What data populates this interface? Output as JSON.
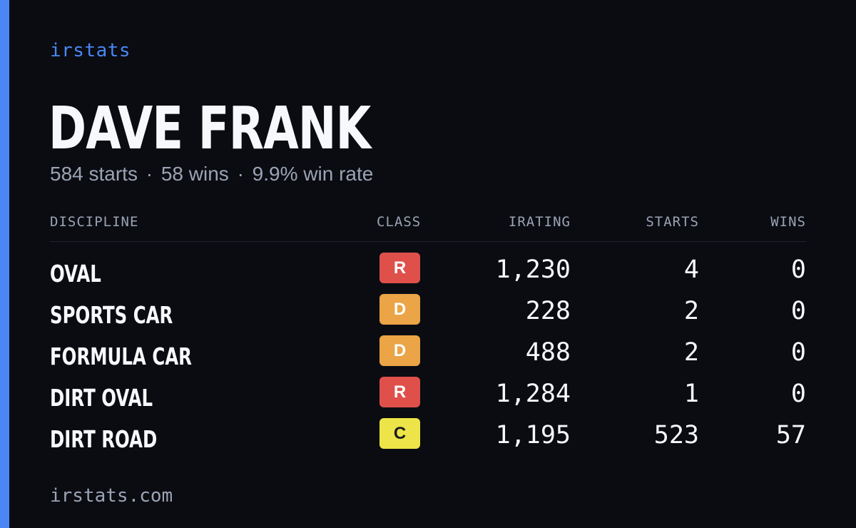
{
  "brand": "irstats",
  "player": {
    "name": "DAVE FRANK",
    "starts": "584 starts",
    "wins": "58 wins",
    "win_rate": "9.9% win rate",
    "separator": "·"
  },
  "table": {
    "headers": {
      "discipline": "DISCIPLINE",
      "class": "CLASS",
      "irating": "IRATING",
      "starts": "STARTS",
      "wins": "WINS"
    },
    "rows": [
      {
        "discipline": "OVAL",
        "class": "R",
        "class_color": "#e0504a",
        "class_text_color": "#ffffff",
        "irating": "1,230",
        "starts": "4",
        "wins": "0"
      },
      {
        "discipline": "SPORTS CAR",
        "class": "D",
        "class_color": "#eba446",
        "class_text_color": "#ffffff",
        "irating": "228",
        "starts": "2",
        "wins": "0"
      },
      {
        "discipline": "FORMULA CAR",
        "class": "D",
        "class_color": "#eba446",
        "class_text_color": "#ffffff",
        "irating": "488",
        "starts": "2",
        "wins": "0"
      },
      {
        "discipline": "DIRT OVAL",
        "class": "R",
        "class_color": "#e0504a",
        "class_text_color": "#ffffff",
        "irating": "1,284",
        "starts": "1",
        "wins": "0"
      },
      {
        "discipline": "DIRT ROAD",
        "class": "C",
        "class_color": "#ece448",
        "class_text_color": "#1a1a1a",
        "irating": "1,195",
        "starts": "523",
        "wins": "57"
      }
    ]
  },
  "footer": "irstats.com",
  "colors": {
    "background": "#0a0c12",
    "accent": "#4a86f5",
    "muted_text": "#9ba3b4",
    "primary_text": "#f7f8fb"
  }
}
